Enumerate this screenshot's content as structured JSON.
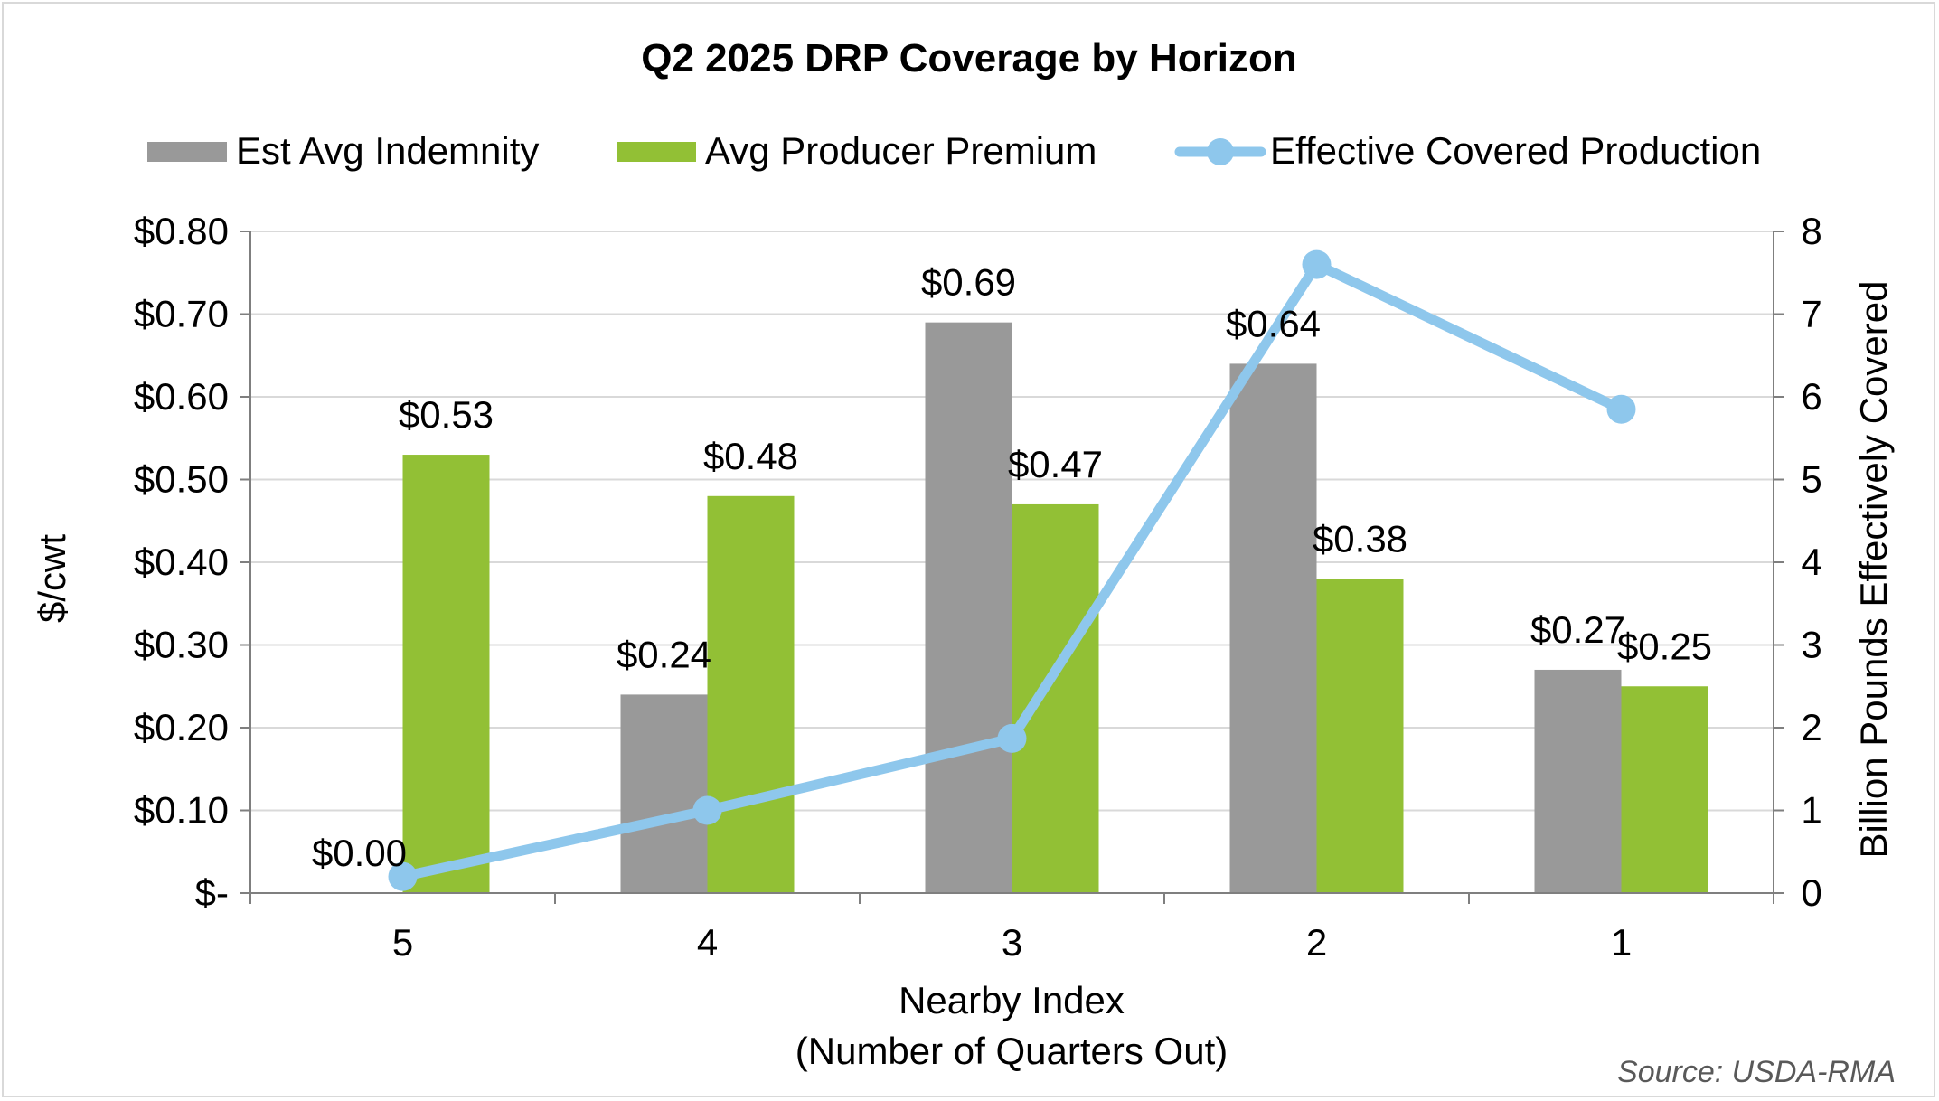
{
  "chart_data": {
    "type": "bar",
    "title": "Q2 2025 DRP Coverage by Horizon",
    "xlabel_line1": "Nearby Index",
    "xlabel_line2": "(Number of Quarters Out)",
    "ylabel": "$/cwt",
    "y2label": "Billion Pounds Effectively Covered",
    "source": "Source: USDA-RMA",
    "categories": [
      "5",
      "4",
      "3",
      "2",
      "1"
    ],
    "ylim": [
      0,
      0.8
    ],
    "y2lim": [
      0,
      8
    ],
    "y_ticks": [
      "$-",
      "$0.10",
      "$0.20",
      "$0.30",
      "$0.40",
      "$0.50",
      "$0.60",
      "$0.70",
      "$0.80"
    ],
    "y2_ticks": [
      "0",
      "1",
      "2",
      "3",
      "4",
      "5",
      "6",
      "7",
      "8"
    ],
    "grid": true,
    "legend_position": "top",
    "series": [
      {
        "name": "Est Avg Indemnity",
        "type": "bar",
        "color": "#999999",
        "values": [
          0.0,
          0.24,
          0.69,
          0.64,
          0.27
        ],
        "labels": [
          "$0.00",
          "$0.24",
          "$0.69",
          "$0.64",
          "$0.27"
        ]
      },
      {
        "name": "Avg Producer Premium",
        "type": "bar",
        "color": "#92c035",
        "values": [
          0.53,
          0.48,
          0.47,
          0.38,
          0.25
        ],
        "labels": [
          "$0.53",
          "$0.48",
          "$0.47",
          "$0.38",
          "$0.25"
        ]
      },
      {
        "name": "Effective Covered Production",
        "type": "line",
        "axis": "secondary",
        "color": "#8ec7ec",
        "values": [
          0.2,
          1.0,
          1.87,
          7.6,
          5.85
        ]
      }
    ]
  }
}
